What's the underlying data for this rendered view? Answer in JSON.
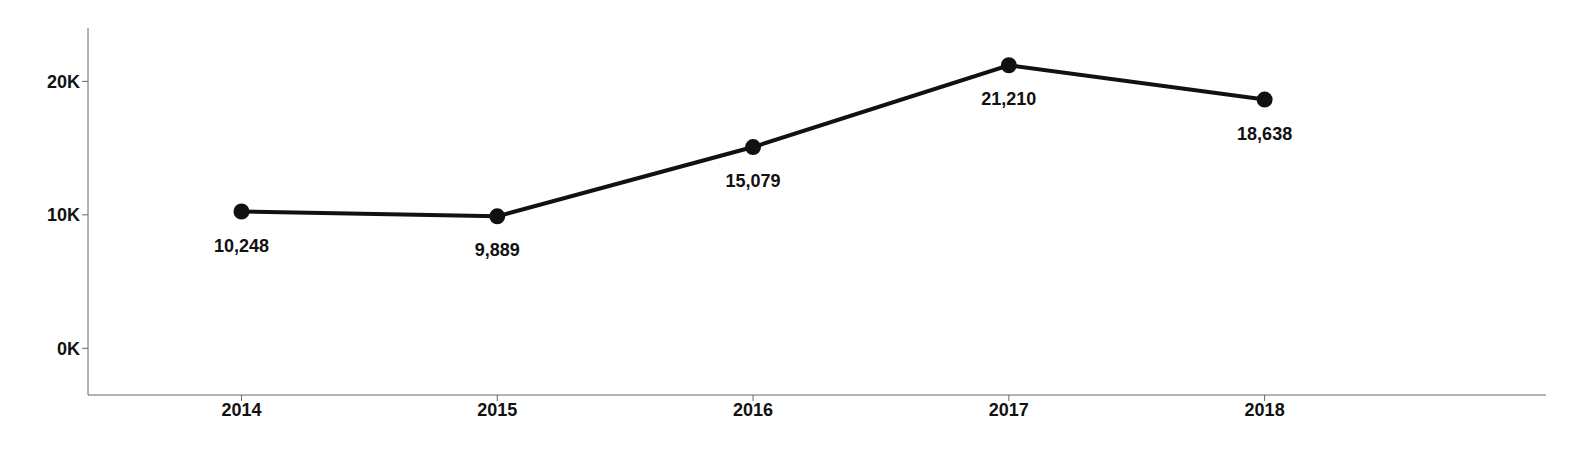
{
  "chart_data": {
    "type": "line",
    "x": [
      2014,
      2015,
      2016,
      2017,
      2018
    ],
    "values": [
      10248,
      9889,
      15079,
      21210,
      18638
    ],
    "value_labels": [
      "10,248",
      "9,889",
      "15,079",
      "21,210",
      "18,638"
    ],
    "color": "#111111",
    "marker": "circle",
    "data_labels": true,
    "xlim": [
      2013.4,
      2019.1
    ],
    "xticks": [
      2014,
      2015,
      2016,
      2017,
      2018
    ],
    "ylim": [
      -3500,
      24000
    ],
    "yticks": [
      {
        "value": 0,
        "label": "0K"
      },
      {
        "value": 10000,
        "label": "10K"
      },
      {
        "value": 20000,
        "label": "20K"
      }
    ],
    "grid": false
  }
}
